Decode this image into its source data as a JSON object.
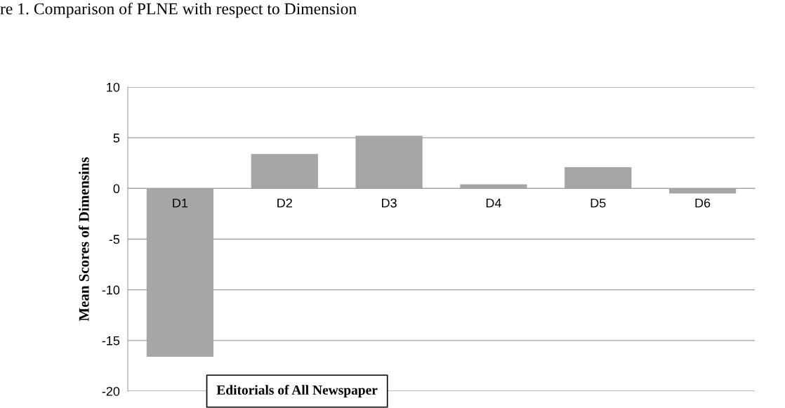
{
  "chart_data": {
    "type": "bar",
    "title": "re 1. Comparison of PLNE with respect to Dimension",
    "xlabel": "Editorials of All Newspaper",
    "ylabel": "Mean Scores of Dimensins",
    "categories": [
      "D1",
      "D2",
      "D3",
      "D4",
      "D5",
      "D6"
    ],
    "values": [
      -16.6,
      3.4,
      5.2,
      0.4,
      2.1,
      -0.5
    ],
    "color": "#a6a6a6",
    "ylim": [
      -20,
      10
    ],
    "yticks": [
      -20,
      -15,
      -10,
      -5,
      0,
      5,
      10
    ],
    "grid": "y"
  }
}
